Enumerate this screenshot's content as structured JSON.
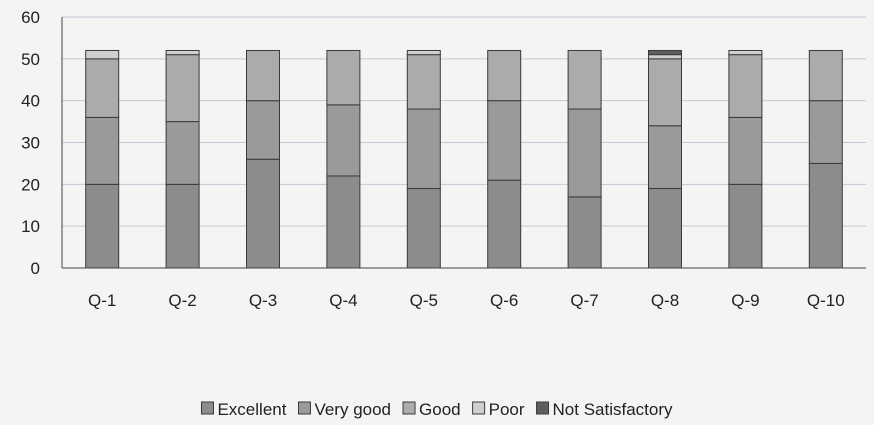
{
  "chart_data": {
    "type": "bar",
    "stacked": true,
    "categories": [
      "Q-1",
      "Q-2",
      "Q-3",
      "Q-4",
      "Q-5",
      "Q-6",
      "Q-7",
      "Q-8",
      "Q-9",
      "Q-10"
    ],
    "series": [
      {
        "name": "Excellent",
        "color": "#8c8c8c",
        "values": [
          20,
          20,
          26,
          22,
          19,
          21,
          17,
          19,
          20,
          25
        ]
      },
      {
        "name": "Very good",
        "color": "#9a9a9a",
        "values": [
          16,
          15,
          14,
          17,
          19,
          19,
          21,
          15,
          16,
          15
        ]
      },
      {
        "name": "Good",
        "color": "#ababab",
        "values": [
          14,
          16,
          12,
          13,
          13,
          12,
          14,
          16,
          15,
          12
        ]
      },
      {
        "name": "Poor",
        "color": "#cfcfcf",
        "values": [
          2,
          1,
          0,
          0,
          1,
          0,
          0,
          1,
          1,
          0
        ]
      },
      {
        "name": "Not Satisfactory",
        "color": "#5e5e5e",
        "values": [
          0,
          0,
          0,
          0,
          0,
          0,
          0,
          1,
          0,
          0
        ]
      }
    ],
    "ylim": [
      0,
      60
    ],
    "yticks": [
      0,
      10,
      20,
      30,
      40,
      50,
      60
    ],
    "grid": true,
    "legend_position": "bottom"
  }
}
